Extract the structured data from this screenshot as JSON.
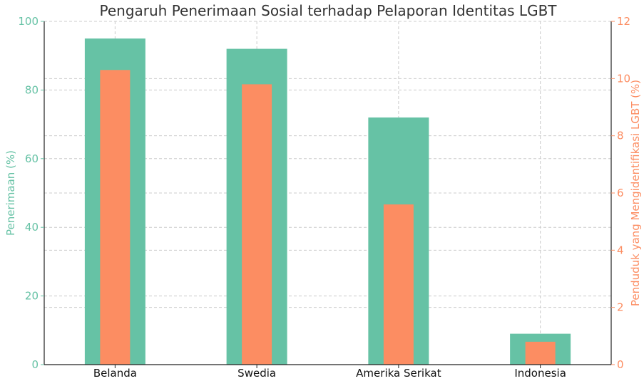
{
  "chart_data": {
    "type": "bar",
    "title": "Pengaruh Penerimaan Sosial terhadap Pelaporan Identitas LGBT",
    "categories": [
      "Belanda",
      "Swedia",
      "Amerika Serikat",
      "Indonesia"
    ],
    "series": [
      {
        "name": "Penerimaan (%)",
        "axis": "left",
        "color": "#66c2a5",
        "values": [
          95,
          92,
          72,
          9
        ]
      },
      {
        "name": "Penduduk yang Mengidentifikasi LGBT (%)",
        "axis": "right",
        "color": "#fc8d62",
        "values": [
          10.3,
          9.8,
          5.6,
          0.8
        ]
      }
    ],
    "ylabel": "Penerimaan (%)",
    "y2label": "Penduduk yang Mengidentifikasi LGBT (%)",
    "ylim": [
      0,
      100
    ],
    "y2lim": [
      0,
      12
    ],
    "yticks": [
      "0",
      "20",
      "40",
      "60",
      "80",
      "100"
    ],
    "y2ticks": [
      "0",
      "2",
      "4",
      "6",
      "8",
      "10",
      "12"
    ],
    "grid": true,
    "left_color": "#66c2a5",
    "right_color": "#fc8d62"
  }
}
